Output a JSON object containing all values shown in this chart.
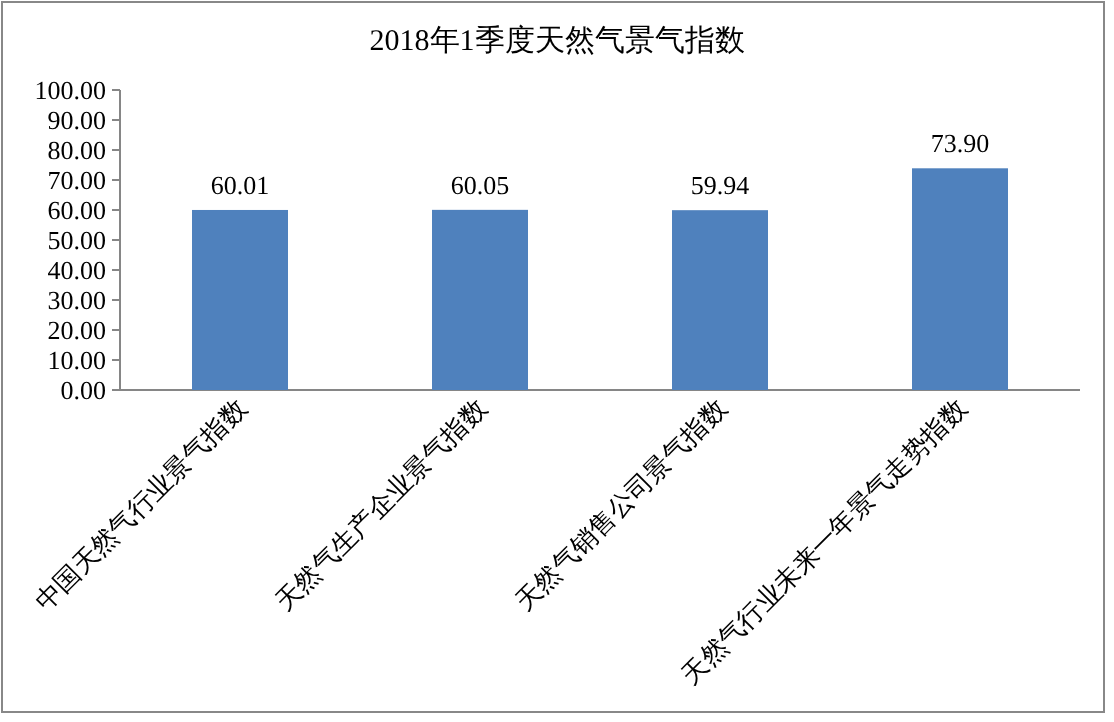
{
  "chart_data": {
    "type": "bar",
    "title": "2018年1季度天然气景气指数",
    "categories": [
      "中国天然气行业景气指数",
      "天然气生产企业景气指数",
      "天然气销售公司景气指数",
      "天然气行业未来一年景气走势指数"
    ],
    "values": [
      60.01,
      60.05,
      59.94,
      73.9
    ],
    "value_labels": [
      "60.01",
      "60.05",
      "59.94",
      "73.90"
    ],
    "color": "#4f81bd",
    "ylim": [
      0,
      100
    ],
    "yticks": [
      {
        "value": 0,
        "label": "0.00"
      },
      {
        "value": 10,
        "label": "10.00"
      },
      {
        "value": 20,
        "label": "20.00"
      },
      {
        "value": 30,
        "label": "30.00"
      },
      {
        "value": 40,
        "label": "40.00"
      },
      {
        "value": 50,
        "label": "50.00"
      },
      {
        "value": 60,
        "label": "60.00"
      },
      {
        "value": 70,
        "label": "70.00"
      },
      {
        "value": 80,
        "label": "80.00"
      },
      {
        "value": 90,
        "label": "90.00"
      },
      {
        "value": 100,
        "label": "100.00"
      }
    ]
  }
}
